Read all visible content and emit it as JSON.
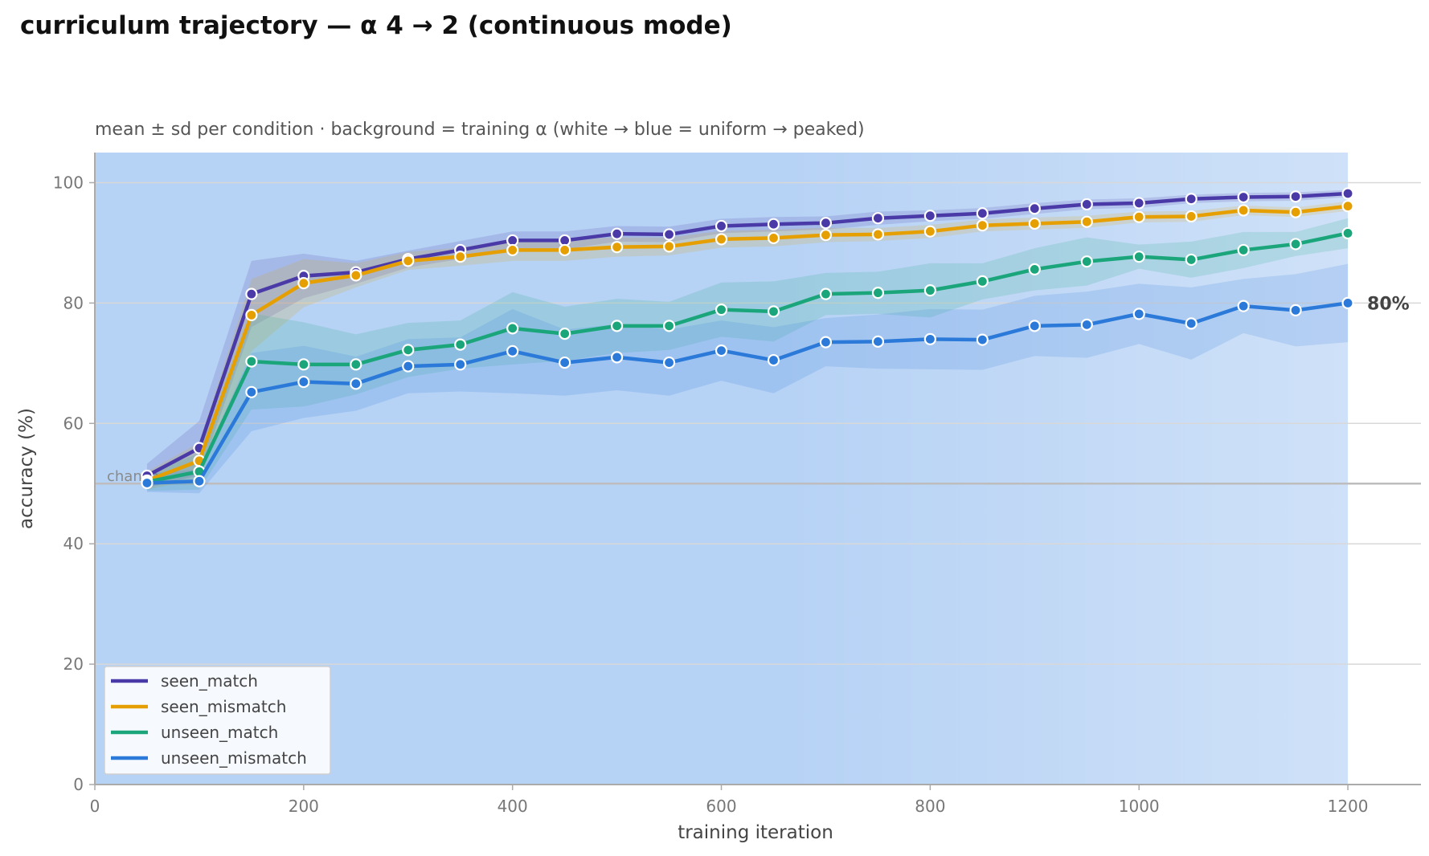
{
  "title": "curriculum trajectory — α 4 → 2 (continuous mode)",
  "chart_data": {
    "type": "line",
    "subtitle": "mean ± sd per condition · background = training α (white → blue = uniform → peaked)",
    "xlabel": "training iteration",
    "ylabel": "accuracy (%)",
    "xlim": [
      0,
      1270
    ],
    "ylim": [
      0,
      105
    ],
    "x_ticks": [
      0,
      200,
      400,
      600,
      800,
      1000,
      1200
    ],
    "y_ticks": [
      0,
      20,
      40,
      60,
      80,
      100
    ],
    "grid": "horizontal",
    "chance_level": 50,
    "chance_label": "chance",
    "end_label": "80%",
    "background_alpha": {
      "start": 4,
      "end": 2,
      "colors": [
        "#b6d2f5",
        "#cfe1f8"
      ]
    },
    "x": [
      50,
      100,
      150,
      200,
      250,
      300,
      350,
      400,
      450,
      500,
      550,
      600,
      650,
      700,
      750,
      800,
      850,
      900,
      950,
      1000,
      1050,
      1100,
      1150,
      1200
    ],
    "series": [
      {
        "name": "seen_match",
        "color": "#4a3aa8",
        "values": [
          51.3,
          55.9,
          81.5,
          84.5,
          85.1,
          87.3,
          88.8,
          90.4,
          90.4,
          91.5,
          91.4,
          92.8,
          93.1,
          93.3,
          94.1,
          94.5,
          94.9,
          95.7,
          96.4,
          96.6,
          97.3,
          97.6,
          97.7,
          98.2
        ],
        "sd": [
          2.0,
          4.5,
          5.5,
          3.7,
          1.9,
          1.4,
          1.5,
          1.5,
          1.5,
          1.3,
          1.3,
          1.2,
          1.2,
          1.1,
          1.1,
          0.9,
          0.9,
          0.9,
          0.8,
          0.8,
          0.7,
          0.7,
          0.7,
          0.6
        ]
      },
      {
        "name": "seen_mismatch",
        "color": "#e69f00",
        "values": [
          50.5,
          53.8,
          78.0,
          83.3,
          84.6,
          87.0,
          87.7,
          88.8,
          88.8,
          89.3,
          89.4,
          90.6,
          90.8,
          91.3,
          91.4,
          91.9,
          92.9,
          93.2,
          93.5,
          94.3,
          94.4,
          95.4,
          95.1,
          96.1
        ]
      },
      {
        "name": "unseen_match",
        "color": "#1aa67a",
        "values": [
          50.3,
          52.0,
          70.3,
          69.8,
          69.8,
          72.2,
          73.1,
          75.8,
          74.9,
          76.2,
          76.2,
          78.9,
          78.6,
          81.5,
          81.7,
          82.1,
          83.6,
          85.6,
          86.9,
          87.7,
          87.2,
          88.8,
          89.8,
          91.6
        ],
        "sd": [
          1.5,
          3.0,
          8.0,
          7.0,
          5.0,
          4.5,
          4.0,
          6.0,
          4.5,
          4.5,
          4.0,
          4.5,
          5.0,
          3.5,
          3.5,
          4.5,
          3.0,
          3.5,
          4.0,
          2.0,
          3.0,
          3.0,
          2.0,
          2.5
        ]
      },
      {
        "name": "unseen_mismatch",
        "color": "#2b79d8",
        "values": [
          50.1,
          50.4,
          65.2,
          66.9,
          66.6,
          69.5,
          69.8,
          72.0,
          70.1,
          71.0,
          70.1,
          72.1,
          70.5,
          73.5,
          73.6,
          74.0,
          73.9,
          76.2,
          76.4,
          78.2,
          76.6,
          79.5,
          78.8,
          80.0
        ],
        "sd": [
          1.5,
          2.0,
          6.5,
          6.0,
          4.5,
          4.5,
          4.5,
          7.0,
          5.5,
          5.5,
          5.5,
          5.0,
          5.5,
          4.0,
          4.5,
          5.0,
          5.0,
          5.0,
          5.5,
          5.0,
          6.0,
          4.5,
          6.0,
          6.5
        ]
      }
    ],
    "legend": {
      "placement": "bottom-left"
    }
  }
}
